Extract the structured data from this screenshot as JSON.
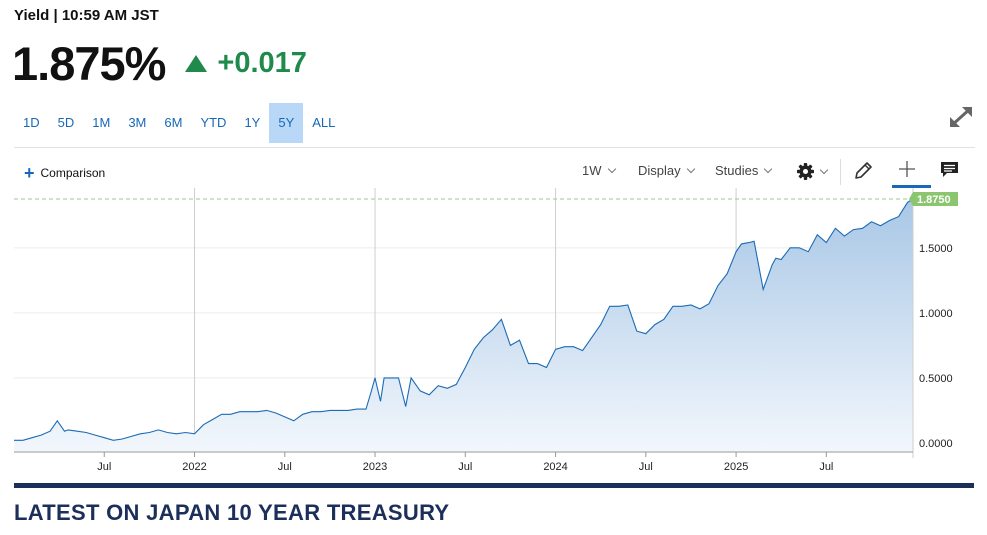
{
  "header": {
    "meta": "Yield | 10:59 AM JST",
    "price": "1.875%",
    "change": "+0.017",
    "change_direction": "up",
    "up_color": "#1f8a4c"
  },
  "ranges": [
    {
      "label": "1D",
      "active": false
    },
    {
      "label": "5D",
      "active": false
    },
    {
      "label": "1M",
      "active": false
    },
    {
      "label": "3M",
      "active": false
    },
    {
      "label": "6M",
      "active": false
    },
    {
      "label": "YTD",
      "active": false
    },
    {
      "label": "1Y",
      "active": false
    },
    {
      "label": "5Y",
      "active": true
    },
    {
      "label": "ALL",
      "active": false
    }
  ],
  "toolbar": {
    "comparison": "Comparison",
    "interval": "1W",
    "display": "Display",
    "studies": "Studies"
  },
  "icons": {
    "expand": "expand-icon",
    "settings": "gear-icon",
    "draw": "pencil-icon",
    "crosshair": "crosshair-icon",
    "comment": "comment-icon"
  },
  "footer": {
    "title": "LATEST ON JAPAN 10 YEAR TREASURY"
  },
  "chart_data": {
    "type": "area",
    "line_color": "#1c6bb5",
    "current_value_label": "1.8750",
    "current_value": 1.875,
    "ylim": [
      -0.07,
      1.96
    ],
    "xlim": [
      2021.0,
      2025.98
    ],
    "grid": true,
    "y_ticks": [
      {
        "value": 0,
        "label": "0.0000"
      },
      {
        "value": 0.5,
        "label": "0.5000"
      },
      {
        "value": 1,
        "label": "1.0000"
      },
      {
        "value": 1.5,
        "label": "1.5000"
      }
    ],
    "x_ticks": [
      {
        "value": 2021.5,
        "label": "Jul"
      },
      {
        "value": 2022,
        "label": "2022"
      },
      {
        "value": 2022.5,
        "label": "Jul"
      },
      {
        "value": 2023,
        "label": "2023"
      },
      {
        "value": 2023.5,
        "label": "Jul"
      },
      {
        "value": 2024,
        "label": "2024"
      },
      {
        "value": 2024.5,
        "label": "Jul"
      },
      {
        "value": 2025,
        "label": "2025"
      },
      {
        "value": 2025.5,
        "label": "Jul"
      }
    ],
    "x_gridlines": [
      2022,
      2023,
      2024,
      2025
    ],
    "series": [
      {
        "x": [
          2021.0,
          2021.05,
          2021.1,
          2021.15,
          2021.2,
          2021.24,
          2021.28,
          2021.3,
          2021.35,
          2021.4,
          2021.45,
          2021.5,
          2021.55,
          2021.6,
          2021.65,
          2021.7,
          2021.75,
          2021.8,
          2021.85,
          2021.9,
          2021.95,
          2022.0,
          2022.05,
          2022.1,
          2022.15,
          2022.2,
          2022.25,
          2022.3,
          2022.35,
          2022.4,
          2022.45,
          2022.5,
          2022.55,
          2022.6,
          2022.65,
          2022.7,
          2022.75,
          2022.8,
          2022.85,
          2022.9,
          2022.95,
          2022.98,
          2023.0,
          2023.03,
          2023.05,
          2023.1,
          2023.13,
          2023.17,
          2023.2,
          2023.25,
          2023.3,
          2023.35,
          2023.4,
          2023.45,
          2023.5,
          2023.55,
          2023.6,
          2023.65,
          2023.7,
          2023.75,
          2023.8,
          2023.85,
          2023.9,
          2023.95,
          2024.0,
          2024.05,
          2024.1,
          2024.15,
          2024.2,
          2024.25,
          2024.3,
          2024.35,
          2024.4,
          2024.45,
          2024.5,
          2024.55,
          2024.6,
          2024.65,
          2024.7,
          2024.75,
          2024.8,
          2024.85,
          2024.9,
          2024.95,
          2025.0,
          2025.03,
          2025.07,
          2025.1,
          2025.15,
          2025.2,
          2025.22,
          2025.25,
          2025.3,
          2025.35,
          2025.4,
          2025.45,
          2025.5,
          2025.55,
          2025.6,
          2025.65,
          2025.7,
          2025.75,
          2025.8,
          2025.85,
          2025.9,
          2025.95,
          2025.98
        ],
        "y": [
          0.02,
          0.02,
          0.04,
          0.06,
          0.09,
          0.17,
          0.09,
          0.1,
          0.09,
          0.08,
          0.06,
          0.04,
          0.02,
          0.03,
          0.05,
          0.07,
          0.08,
          0.1,
          0.08,
          0.07,
          0.08,
          0.07,
          0.14,
          0.18,
          0.22,
          0.22,
          0.24,
          0.24,
          0.24,
          0.25,
          0.23,
          0.2,
          0.17,
          0.22,
          0.24,
          0.24,
          0.25,
          0.25,
          0.25,
          0.26,
          0.26,
          0.4,
          0.5,
          0.32,
          0.5,
          0.5,
          0.5,
          0.28,
          0.5,
          0.4,
          0.37,
          0.44,
          0.42,
          0.45,
          0.58,
          0.72,
          0.81,
          0.87,
          0.95,
          0.75,
          0.79,
          0.61,
          0.61,
          0.58,
          0.72,
          0.74,
          0.74,
          0.71,
          0.81,
          0.91,
          1.05,
          1.05,
          1.06,
          0.86,
          0.84,
          0.91,
          0.95,
          1.05,
          1.05,
          1.06,
          1.03,
          1.07,
          1.21,
          1.3,
          1.47,
          1.53,
          1.54,
          1.55,
          1.18,
          1.37,
          1.42,
          1.41,
          1.5,
          1.5,
          1.47,
          1.6,
          1.54,
          1.65,
          1.59,
          1.64,
          1.65,
          1.7,
          1.67,
          1.71,
          1.74,
          1.85,
          1.875
        ]
      }
    ]
  }
}
